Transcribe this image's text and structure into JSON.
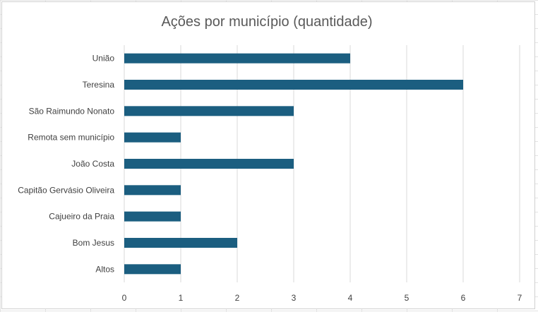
{
  "chart_data": {
    "type": "bar",
    "orientation": "horizontal",
    "title": "Ações por município (quantidade)",
    "xlabel": "",
    "ylabel": "",
    "categories": [
      "União",
      "Teresina",
      "São Raimundo Nonato",
      "Remota sem município",
      "João Costa",
      "Capitão Gervásio Oliveira",
      "Cajueiro da Praia",
      "Bom Jesus",
      "Altos"
    ],
    "values": [
      4,
      6,
      3,
      1,
      3,
      1,
      1,
      2,
      1
    ],
    "xlim": [
      0,
      7
    ],
    "xticks": [
      "0",
      "1",
      "2",
      "3",
      "4",
      "5",
      "6",
      "7"
    ],
    "grid": "vertical",
    "bar_color": "#1b5e80"
  }
}
